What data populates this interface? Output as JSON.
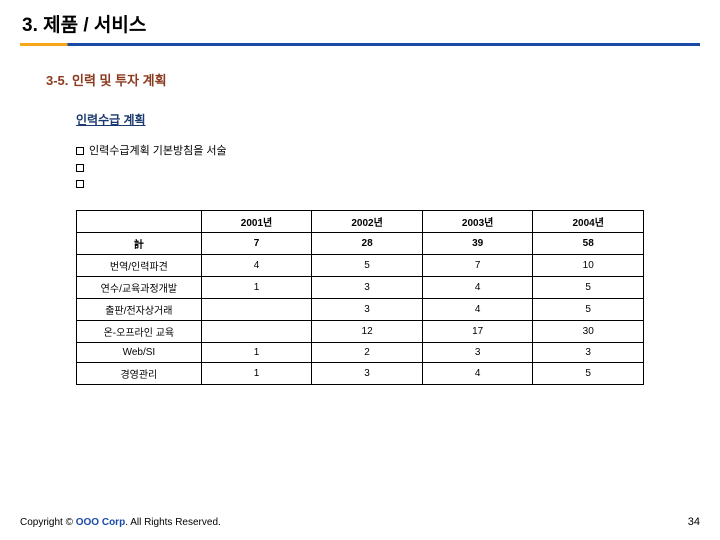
{
  "title": "3. 제품 / 서비스",
  "subtitle": "3-5. 인력 및 투자 계획",
  "section_head": "인력수급 계획",
  "bullets": [
    "인력수급계획 기본방침을 서술",
    "",
    ""
  ],
  "table": {
    "columns": [
      "",
      "2001년",
      "2002년",
      "2003년",
      "2004년"
    ],
    "rows": [
      {
        "label": "計",
        "cells": [
          "7",
          "28",
          "39",
          "58"
        ],
        "is_total": true
      },
      {
        "label": "번역/인력파견",
        "cells": [
          "4",
          "5",
          "7",
          "10"
        ]
      },
      {
        "label": "연수/교육과정개발",
        "cells": [
          "1",
          "3",
          "4",
          "5"
        ]
      },
      {
        "label": "출판/전자상거래",
        "cells": [
          "",
          "3",
          "4",
          "5"
        ]
      },
      {
        "label": "온-오프라인 교육",
        "cells": [
          "",
          "12",
          "17",
          "30"
        ]
      },
      {
        "label": "Web/SI",
        "cells": [
          "1",
          "2",
          "3",
          "3"
        ]
      },
      {
        "label": "경영관리",
        "cells": [
          "1",
          "3",
          "4",
          "5"
        ]
      }
    ]
  },
  "footer": {
    "prefix": "Copyright © ",
    "corp": "OOO Corp",
    "suffix": ". All Rights Reserved."
  },
  "page_number": "34",
  "colors": {
    "accent_orange": "#f7a61a",
    "accent_blue": "#1a4aa8",
    "subtitle_color": "#8a3a1f",
    "section_head_color": "#1a3a6f",
    "total_value_color": "#8a1f1f"
  }
}
